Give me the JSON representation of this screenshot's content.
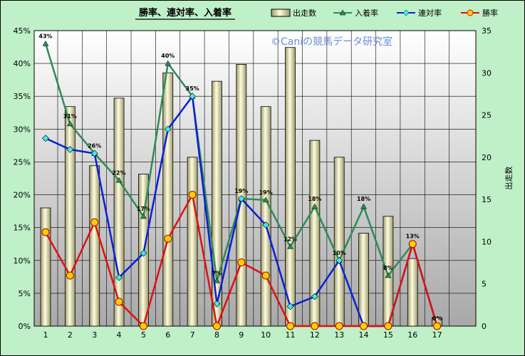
{
  "chart_data": {
    "type": "bar+line",
    "title": "勝率、連対率、入着率",
    "watermark": "©Caniの競馬データ研究室",
    "categories": [
      "1",
      "2",
      "3",
      "4",
      "5",
      "6",
      "7",
      "8",
      "9",
      "10",
      "11",
      "12",
      "13",
      "14",
      "15",
      "16",
      "17"
    ],
    "y2label": "出走数",
    "ylim_left": [
      0,
      0.45
    ],
    "ylim_right": [
      0,
      35
    ],
    "left_ticks": [
      "0%",
      "5%",
      "10%",
      "15%",
      "20%",
      "25%",
      "30%",
      "35%",
      "40%",
      "45%"
    ],
    "right_ticks": [
      "0",
      "5",
      "10",
      "15",
      "20",
      "25",
      "30",
      "35"
    ],
    "bar_series": {
      "name": "出走数",
      "axis": "right",
      "values": [
        14,
        26,
        19,
        27,
        18,
        30,
        20,
        29,
        31,
        26,
        33,
        22,
        20,
        11,
        13,
        8,
        1
      ]
    },
    "line_series": [
      {
        "name": "入着率",
        "color": "#2e8b57",
        "marker": "triangle",
        "values": [
          0.43,
          0.308,
          null,
          0.222,
          0.167,
          0.4,
          0.35,
          0.069,
          0.194,
          0.192,
          0.121,
          0.182,
          0.1,
          0.182,
          0.077,
          0.125,
          0.0
        ],
        "labels": [
          "43%",
          "31%",
          "26%",
          "22%",
          "17%",
          "40%",
          "35%",
          "7%",
          "19%",
          "19%",
          "12%",
          "18%",
          "10%",
          "18%",
          "8%",
          "13%",
          "0%"
        ]
      },
      {
        "name": "連対率",
        "color": "#0a1fd8",
        "marker": "diamond",
        "values": [
          0.286,
          0.269,
          0.263,
          0.074,
          0.111,
          0.3,
          0.35,
          0.034,
          0.194,
          0.154,
          0.03,
          0.045,
          0.1,
          0.0,
          0.0,
          0.125,
          0.0
        ]
      },
      {
        "name": "勝率",
        "color": "#e01010",
        "marker": "circle",
        "values": [
          0.143,
          0.077,
          0.158,
          0.037,
          0.0,
          0.133,
          0.2,
          0.0,
          0.097,
          0.077,
          0.0,
          0.0,
          0.0,
          0.0,
          0.0,
          0.125,
          0.0
        ]
      }
    ],
    "combined_labels": [
      "26%"
    ]
  }
}
